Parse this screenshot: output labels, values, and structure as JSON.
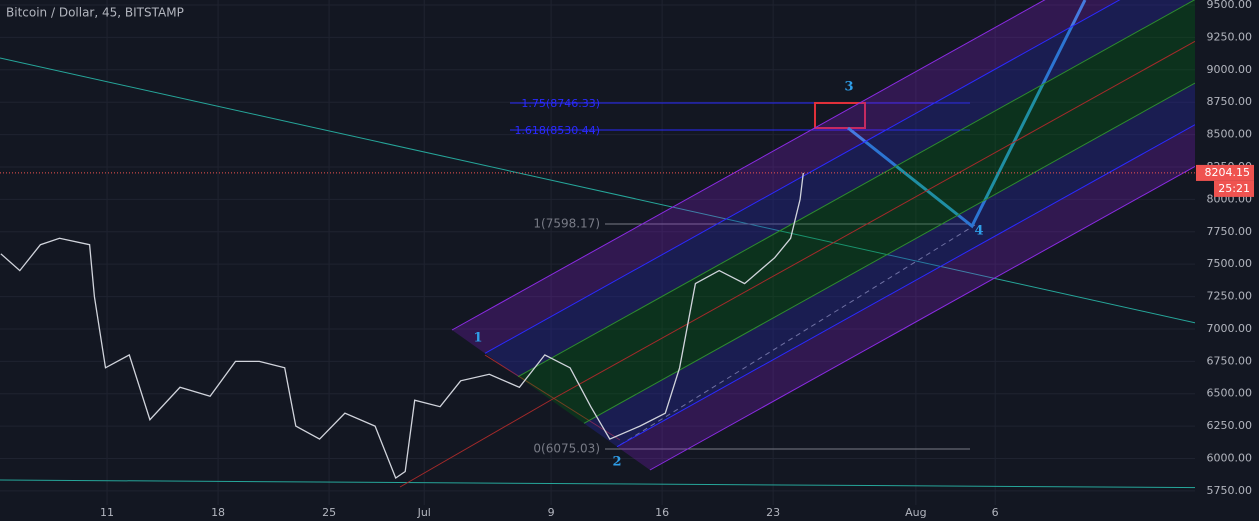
{
  "chart_data": {
    "type": "line",
    "title": "Bitcoin / Dollar, 45, BITSTAMP",
    "x": [
      4.3,
      5.5,
      6.8,
      8.0,
      9.9,
      10.2,
      10.9,
      12.4,
      13.7,
      15.6,
      17.5,
      19.1,
      20.6,
      22.2,
      22.9,
      24.4,
      26.0,
      27.9,
      29.2,
      29.8,
      30.4,
      32.0,
      33.3,
      35.1,
      37.0,
      38.6,
      40.2,
      41.5,
      42.7,
      44.6,
      46.2,
      47.1,
      48.1,
      49.6,
      51.2,
      53.1,
      54.1,
      54.7,
      54.9
    ],
    "values": [
      7580,
      7450,
      7650,
      7700,
      7650,
      7250,
      6700,
      6800,
      6300,
      6550,
      6480,
      6750,
      6750,
      6700,
      6250,
      6150,
      6350,
      6250,
      5850,
      5900,
      6450,
      6400,
      6600,
      6650,
      6550,
      6800,
      6700,
      6400,
      6150,
      6250,
      6350,
      6700,
      7350,
      7450,
      7350,
      7550,
      7700,
      8000,
      8204.15
    ],
    "color": "#d1d4dc",
    "xlim": [
      4.25,
      79.6
    ],
    "ylim": [
      5518,
      9538.6
    ],
    "xticks": [
      {
        "value": 11,
        "label": "11"
      },
      {
        "value": 18,
        "label": "18"
      },
      {
        "value": 25,
        "label": "25"
      },
      {
        "value": 31,
        "label": "Jul"
      },
      {
        "value": 39,
        "label": "9"
      },
      {
        "value": 46,
        "label": "16"
      },
      {
        "value": 53,
        "label": "23"
      },
      {
        "value": 62,
        "label": "Aug"
      },
      {
        "value": 67,
        "label": "6"
      }
    ],
    "yticks": [
      {
        "value": 5750,
        "label": "5750.00"
      },
      {
        "value": 6000,
        "label": "6000.00"
      },
      {
        "value": 6250,
        "label": "6250.00"
      },
      {
        "value": 6500,
        "label": "6500.00"
      },
      {
        "value": 6750,
        "label": "6750.00"
      },
      {
        "value": 7000,
        "label": "7000.00"
      },
      {
        "value": 7250,
        "label": "7250.00"
      },
      {
        "value": 7500,
        "label": "7500.00"
      },
      {
        "value": 7750,
        "label": "7750.00"
      },
      {
        "value": 8000,
        "label": "8000.00"
      },
      {
        "value": 8250,
        "label": "8250.00"
      },
      {
        "value": 8500,
        "label": "8500.00"
      },
      {
        "value": 8750,
        "label": "8750.00"
      },
      {
        "value": 9000,
        "label": "9000.00"
      },
      {
        "value": 9250,
        "label": "9250.00"
      },
      {
        "value": 9500,
        "label": "9500.00"
      }
    ],
    "grid": true,
    "countdown": "25:21",
    "annotations": [
      "1.75(8746.33)",
      "1.618(8530.44)",
      "1(7598.17)",
      "0(6075.03)",
      "1",
      "2",
      "3",
      "4"
    ]
  }
}
